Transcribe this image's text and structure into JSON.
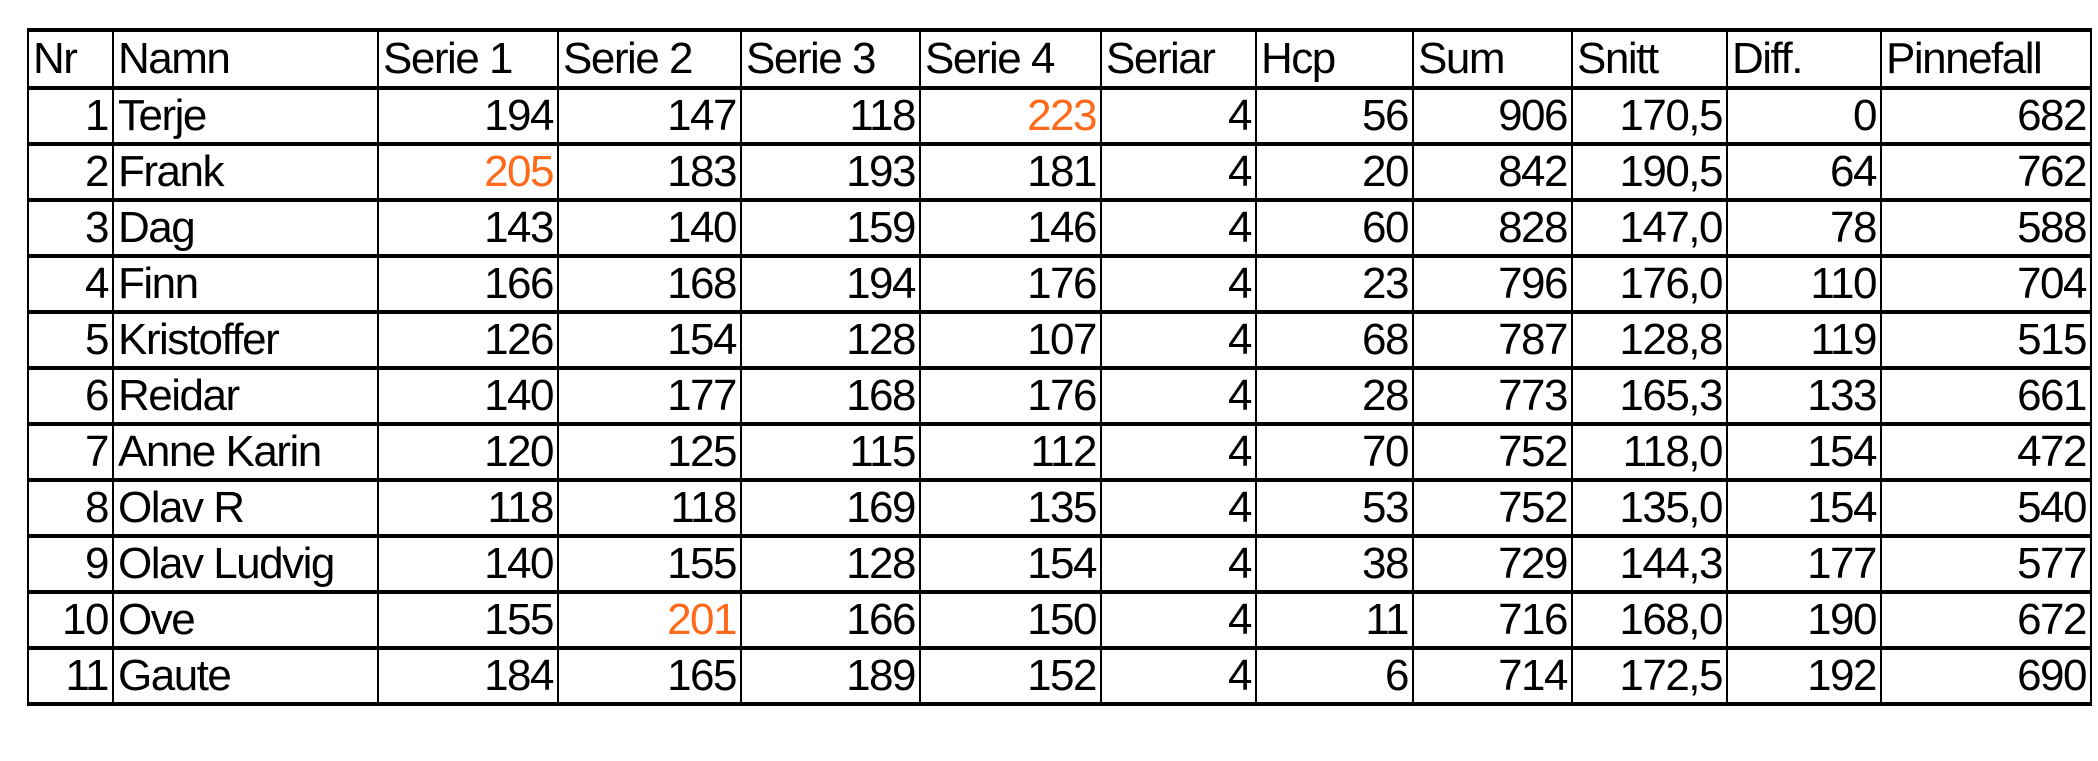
{
  "headers": [
    "Nr",
    "Namn",
    "Serie 1",
    "Serie 2",
    "Serie 3",
    "Serie 4",
    "Seriar",
    "Hcp",
    "Sum",
    "Snitt",
    "Diff.",
    "Pinnefall"
  ],
  "highlight_color": "#ff6a1a",
  "rows": [
    {
      "cells": [
        "1",
        "Terje",
        "194",
        "147",
        "118",
        "223",
        "4",
        "56",
        "906",
        "170,5",
        "0",
        "682"
      ],
      "highlight": 5
    },
    {
      "cells": [
        "2",
        "Frank",
        "205",
        "183",
        "193",
        "181",
        "4",
        "20",
        "842",
        "190,5",
        "64",
        "762"
      ],
      "highlight": 2
    },
    {
      "cells": [
        "3",
        "Dag",
        "143",
        "140",
        "159",
        "146",
        "4",
        "60",
        "828",
        "147,0",
        "78",
        "588"
      ],
      "highlight": -1
    },
    {
      "cells": [
        "4",
        "Finn",
        "166",
        "168",
        "194",
        "176",
        "4",
        "23",
        "796",
        "176,0",
        "110",
        "704"
      ],
      "highlight": -1
    },
    {
      "cells": [
        "5",
        "Kristoffer",
        "126",
        "154",
        "128",
        "107",
        "4",
        "68",
        "787",
        "128,8",
        "119",
        "515"
      ],
      "highlight": -1
    },
    {
      "cells": [
        "6",
        "Reidar",
        "140",
        "177",
        "168",
        "176",
        "4",
        "28",
        "773",
        "165,3",
        "133",
        "661"
      ],
      "highlight": -1
    },
    {
      "cells": [
        "7",
        "Anne Karin",
        "120",
        "125",
        "115",
        "112",
        "4",
        "70",
        "752",
        "118,0",
        "154",
        "472"
      ],
      "highlight": -1
    },
    {
      "cells": [
        "8",
        "Olav R",
        "118",
        "118",
        "169",
        "135",
        "4",
        "53",
        "752",
        "135,0",
        "154",
        "540"
      ],
      "highlight": -1
    },
    {
      "cells": [
        "9",
        "Olav Ludvig",
        "140",
        "155",
        "128",
        "154",
        "4",
        "38",
        "729",
        "144,3",
        "177",
        "577"
      ],
      "highlight": -1
    },
    {
      "cells": [
        "10",
        "Ove",
        "155",
        "201",
        "166",
        "150",
        "4",
        "11",
        "716",
        "168,0",
        "190",
        "672"
      ],
      "highlight": 3
    },
    {
      "cells": [
        "11",
        "Gaute",
        "184",
        "165",
        "189",
        "152",
        "4",
        "6",
        "714",
        "172,5",
        "192",
        "690"
      ],
      "highlight": -1
    }
  ]
}
